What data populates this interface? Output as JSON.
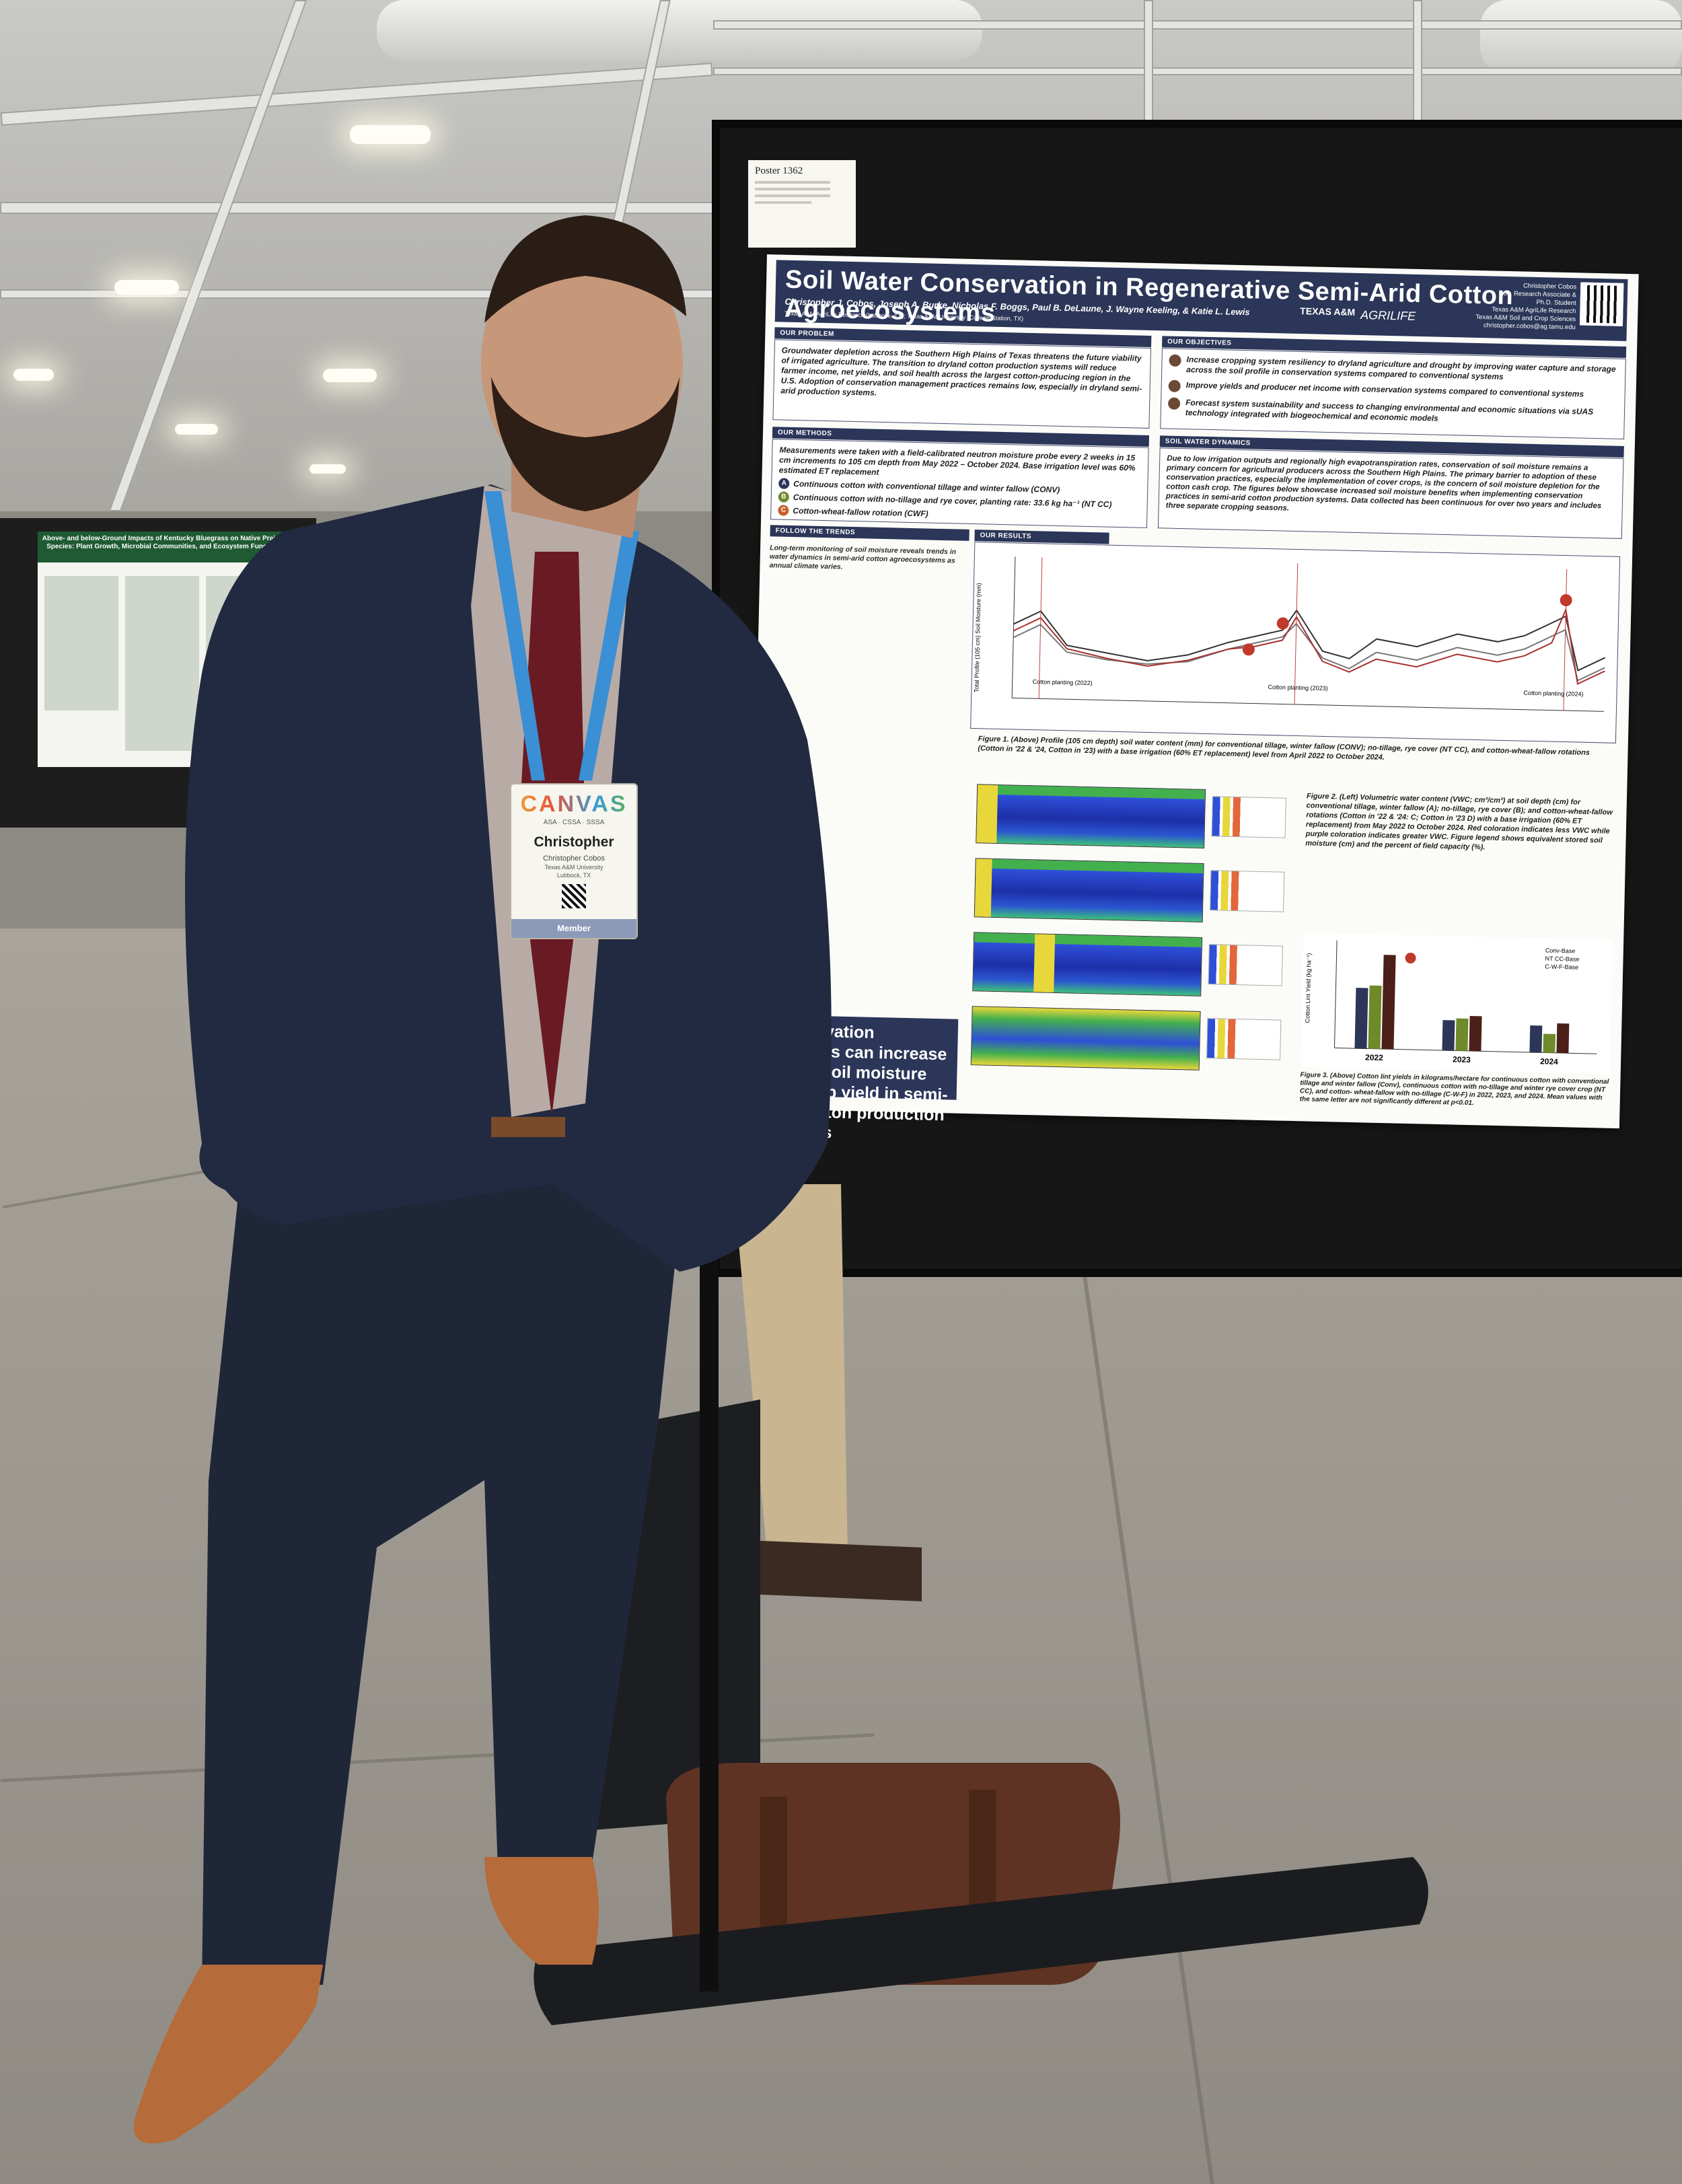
{
  "poster_number": "Poster 1362",
  "background_poster": {
    "title": "Above- and below-Ground Impacts of Kentucky Bluegrass on Native Prairie Species: Plant Growth, Microbial Communities, and Ecosystem Function"
  },
  "poster": {
    "title": "Soil Water Conservation in Regenerative Semi-Arid Cotton Agroecosystems",
    "authors": "Christopher J. Cobos, Joseph A. Burke, Nicholas F. Boggs, Paul B. DeLaune, J. Wayne Keeling, & Katie L. Lewis",
    "affiliation": "Texas A&M AgriLife Research (Lubbock, TX); Texas A&M University (College Station, TX)",
    "logo_main": "TEXAS A&M",
    "logo_sub": "AGRILIFE",
    "contact": [
      "Christopher Cobos",
      "Soc. Research Associate &",
      "Ph.D. Student",
      "Texas A&M AgriLife Research",
      "Texas A&M Soil and Crop Sciences",
      "christopher.cobos@ag.tamu.edu"
    ],
    "sections": {
      "problem_head": "Our Problem",
      "problem_text": "Groundwater depletion across the Southern High Plains of Texas threatens the future viability of irrigated agriculture. The transition to dryland cotton production systems will reduce farmer income, net yields, and soil health across the largest cotton-producing region in the U.S. Adoption of conservation management practices remains low, especially in dryland semi-arid production systems.",
      "objectives_head": "Our Objectives",
      "objectives": [
        "Increase cropping system resiliency to dryland agriculture and drought by improving water capture and storage across the soil profile in conservation systems compared to conventional systems",
        "Improve yields and producer net income with conservation systems compared to conventional systems",
        "Forecast system sustainability and success to changing environmental and economic situations via sUAS technology integrated with biogeochemical and economic models"
      ],
      "methods_head": "Our Methods",
      "methods_text": "Measurements were taken with a field-calibrated neutron moisture probe every 2 weeks in 15 cm increments to 105 cm depth from May 2022 – October 2024. Base irrigation level was 60% estimated ET replacement",
      "treatments": [
        {
          "badge": "A",
          "label": "Continuous cotton with conventional tillage and winter fallow (CONV)"
        },
        {
          "badge": "B",
          "label": "Continuous cotton with no-tillage and rye cover, planting rate: 33.6 kg ha⁻¹ (NT CC)"
        },
        {
          "badge": "C",
          "label": "Cotton-wheat-fallow rotation (CWF)"
        }
      ],
      "soil_head": "Soil Water Dynamics",
      "soil_text": "Due to low irrigation outputs and regionally high evapotranspiration rates, conservation of soil moisture remains a primary concern for agricultural producers across the Southern High Plains. The primary barrier to adoption of these conservation practices, especially the implementation of cover crops, is the concern of soil moisture depletion for the cotton cash crop. The figures below showcase increased soil moisture benefits when implementing conservation practices in semi-arid cotton production systems. Data collected has been continuous for over two years and includes three separate cropping seasons.",
      "trends_head": "Follow the Trends",
      "trends_text": "Long-term monitoring of soil moisture reveals trends in water dynamics in semi-arid cotton agroecosystems as annual climate varies.",
      "results_head": "Our Results",
      "fig1_caption": "Figure 1. (Above) Profile (105 cm depth) soil water content (mm) for conventional tillage, winter fallow (CONV); no-tillage, rye cover (NT CC), and cotton-wheat-fallow rotations (Cotton in '22 & '24, Cotton in '23) with a base irrigation (60% ET replacement) level from April 2022 to October 2024.",
      "fig2_caption": "Figure 2. (Left) Volumetric water content (VWC; cm³/cm³) at soil depth (cm) for conventional tillage, winter fallow (A); no-tillage, rye cover (B); and cotton-wheat-fallow rotations (Cotton in '22 & '24: C; Cotton in '23 D) with a base irrigation (60% ET replacement) from May 2022 to October 2024. Red coloration indicates less VWC while purple coloration indicates greater VWC. Figure legend shows equivalent stored soil moisture (cm) and the percent of field capacity (%).",
      "fig3_caption": "Figure 3. (Above) Cotton lint yields in kilograms/hectare for continuous cotton with conventional tillage and winter fallow (Conv), continuous cotton with no-tillage and winter rye cover crop (NT CC), and cotton- wheat-fallow with no-tillage (C-W-F) in 2022, 2023, and 2024. Mean values with the same letter are not significantly different at p<0.01.",
      "takeaway": "Conservation practices can increase stored soil moisture and crop yield in semi-arid cotton production systems"
    },
    "chart_labels": {
      "y_axis": "Total Profile (105 cm) Soil Moisture (mm)",
      "planting_2022": "Cotton planting (2022)",
      "planting_2023": "Cotton planting (2023)",
      "planting_2024": "Cotton planting (2024)"
    },
    "yield_chart": {
      "y_axis": "Cotton Lint Yield (kg ha⁻¹)",
      "legend": [
        "Conv-Base",
        "NT CC-Base",
        "C-W-F-Base"
      ],
      "years": [
        "2022",
        "2023",
        "2024"
      ]
    }
  },
  "badge": {
    "logo": "CANVAS",
    "societies": "ASA · CSSA · SSSA",
    "first_name": "Christopher",
    "full_name": "Christopher Cobos",
    "institution": "Texas A&M University",
    "location": "Lubbock, TX",
    "type": "Member"
  },
  "lanyard_text": "CANVAS"
}
